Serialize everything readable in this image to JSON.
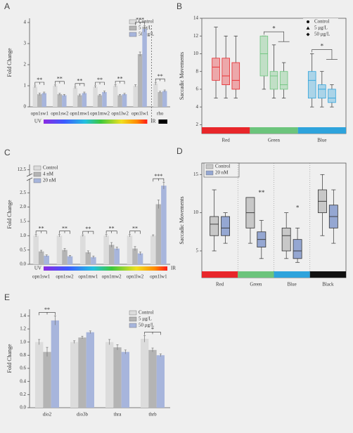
{
  "chart_data": [
    {
      "type": "bar",
      "panel": "A",
      "ylabel": "Fold Change",
      "categories": [
        "opn1sw1",
        "opn1sw2",
        "opn1mw1",
        "opn1mw2",
        "opn1lw2",
        "opn1lw1",
        "rho"
      ],
      "series": [
        {
          "name": "Control",
          "color": "#dcdcdc",
          "values": [
            0.95,
            1.0,
            0.9,
            0.95,
            1.0,
            1.0,
            1.1
          ],
          "errors": [
            0.05,
            0.04,
            0.04,
            0.05,
            0.05,
            0.05,
            0.06
          ]
        },
        {
          "name": "5 μg/L",
          "color": "#b4b4b4",
          "values": [
            0.6,
            0.6,
            0.55,
            0.55,
            0.55,
            2.5,
            0.7
          ],
          "errors": [
            0.05,
            0.04,
            0.05,
            0.04,
            0.04,
            0.1,
            0.04
          ]
        },
        {
          "name": "50 μg/L",
          "color": "#a7b5dc",
          "values": [
            0.65,
            0.55,
            0.65,
            0.7,
            0.6,
            3.7,
            0.75
          ],
          "errors": [
            0.05,
            0.04,
            0.05,
            0.05,
            0.04,
            0.15,
            0.05
          ]
        }
      ],
      "significance": [
        "**",
        "**",
        "**",
        "**",
        "**",
        "***",
        "**"
      ],
      "annotations": [
        "UV",
        "IR"
      ],
      "ylim": [
        0,
        4.2
      ],
      "yticks": [
        0,
        1,
        2,
        3,
        4
      ],
      "legend": "upper right"
    },
    {
      "type": "box",
      "panel": "B",
      "ylabel": "Saccadic Movements",
      "categories": [
        "Red",
        "Green",
        "Blue"
      ],
      "category_colors": [
        "#e8262a",
        "#6cc47c",
        "#2ea3dc"
      ],
      "series": [
        {
          "name": "Control",
          "marker": "circle",
          "boxes": [
            {
              "min": 5,
              "q1": 7,
              "median": 8.5,
              "q3": 9.5,
              "max": 13
            },
            {
              "min": 6,
              "q1": 7.5,
              "median": 10,
              "q3": 12,
              "max": 12
            },
            {
              "min": 4,
              "q1": 5,
              "median": 7,
              "q3": 8,
              "max": 10
            }
          ]
        },
        {
          "name": "5 μg/L",
          "marker": "triangle",
          "boxes": [
            {
              "min": 5,
              "q1": 6.5,
              "median": 7.5,
              "q3": 9.5,
              "max": 12
            },
            {
              "min": 5,
              "q1": 6,
              "median": 7.5,
              "q3": 8,
              "max": 11
            },
            {
              "min": 4,
              "q1": 5,
              "median": 6,
              "q3": 6.5,
              "max": 8
            }
          ]
        },
        {
          "name": "50 μg/L",
          "marker": "diamond",
          "boxes": [
            {
              "min": 5,
              "q1": 6,
              "median": 7,
              "q3": 9,
              "max": 12
            },
            {
              "min": 5,
              "q1": 6,
              "median": 6.5,
              "q3": 8,
              "max": 9
            },
            {
              "min": 4,
              "q1": 4.5,
              "median": 5,
              "q3": 6,
              "max": 6.5
            }
          ]
        }
      ],
      "significance": [
        null,
        "*",
        "*"
      ],
      "ylim": [
        1,
        14
      ],
      "yticks": [
        2,
        4,
        6,
        8,
        10,
        12,
        14
      ],
      "legend": "upper right"
    },
    {
      "type": "bar",
      "panel": "C",
      "ylabel": "Fold Change",
      "categories": [
        "opn1sw1",
        "opn1sw2",
        "opn1mw1",
        "opn1mw2",
        "opn1lw2",
        "opn1lw1"
      ],
      "series": [
        {
          "name": "Control",
          "color": "#dcdcdc",
          "values": [
            1.0,
            1.0,
            1.0,
            1.0,
            1.0,
            1.0
          ],
          "errors": [
            0.04,
            0.04,
            0.03,
            0.04,
            0.04,
            0.03
          ]
        },
        {
          "name": "4 nM",
          "color": "#b4b4b4",
          "values": [
            0.45,
            0.5,
            0.42,
            0.68,
            0.55,
            2.1
          ],
          "errors": [
            0.04,
            0.05,
            0.05,
            0.08,
            0.07,
            0.15
          ]
        },
        {
          "name": "20 nM",
          "color": "#a7b5dc",
          "values": [
            0.3,
            0.28,
            0.25,
            0.55,
            0.38,
            2.75
          ],
          "errors": [
            0.03,
            0.03,
            0.04,
            0.05,
            0.05,
            0.12
          ]
        }
      ],
      "significance": [
        "**",
        "**",
        "**",
        "**",
        "**",
        "***"
      ],
      "annotations": [
        "UV",
        "IR"
      ],
      "ylim": [
        0,
        13
      ],
      "ybreak": [
        2.9,
        12.2
      ],
      "yticks": [
        {
          "value": 0,
          "label": "0.0"
        },
        0.5,
        {
          "value": 1,
          "label": "1.0"
        },
        1.5,
        {
          "value": 2,
          "label": "2.0"
        },
        2.5,
        12.5
      ],
      "legend": "upper left"
    },
    {
      "type": "box",
      "panel": "D",
      "ylabel": "Saccadic Movements",
      "categories": [
        "Red",
        "Green",
        "Blue",
        "Black"
      ],
      "category_colors": [
        "#e8262a",
        "#6cc47c",
        "#2ea3dc",
        "#111111"
      ],
      "series": [
        {
          "name": "Control",
          "color": "#c8c8c8",
          "boxes": [
            {
              "min": 5,
              "q1": 7,
              "median": 8.5,
              "q3": 9.5,
              "max": 13
            },
            {
              "min": 6,
              "q1": 8,
              "median": 10,
              "q3": 12,
              "max": 12
            },
            {
              "min": 4,
              "q1": 5,
              "median": 7,
              "q3": 8,
              "max": 10
            },
            {
              "min": 7,
              "q1": 10,
              "median": 11.5,
              "q3": 13,
              "max": 15
            }
          ]
        },
        {
          "name": "20 nM",
          "color": "#95a7d2",
          "boxes": [
            {
              "min": 6,
              "q1": 7,
              "median": 8,
              "q3": 9.5,
              "max": 10
            },
            {
              "min": 4,
              "q1": 5.5,
              "median": 6.5,
              "q3": 7.5,
              "max": 9
            },
            {
              "min": 3.5,
              "q1": 4,
              "median": 5,
              "q3": 6.5,
              "max": 8
            },
            {
              "min": 6,
              "q1": 8,
              "median": 9.5,
              "q3": 11,
              "max": 13
            }
          ]
        }
      ],
      "significance": [
        null,
        "**",
        "*",
        null
      ],
      "ylim": [
        1.5,
        16.5
      ],
      "yticks": [
        5,
        10,
        15
      ],
      "legend": "upper left"
    },
    {
      "type": "bar",
      "panel": "E",
      "ylabel": "Fold Change",
      "categories": [
        "dio2",
        "dio3b",
        "thra",
        "thrb"
      ],
      "series": [
        {
          "name": "Control",
          "color": "#dcdcdc",
          "values": [
            1.0,
            1.0,
            1.0,
            1.05
          ],
          "errors": [
            0.04,
            0.02,
            0.04,
            0.05
          ]
        },
        {
          "name": "5 μg/L",
          "color": "#b4b4b4",
          "values": [
            0.85,
            1.07,
            0.92,
            0.88
          ],
          "errors": [
            0.07,
            0.02,
            0.04,
            0.03
          ]
        },
        {
          "name": "50 μg/L",
          "color": "#a7b5dc",
          "values": [
            1.33,
            1.15,
            0.85,
            0.8
          ],
          "errors": [
            0.07,
            0.02,
            0.03,
            0.02
          ]
        }
      ],
      "significance": [
        "**",
        null,
        null,
        "*"
      ],
      "ylim": [
        0,
        1.5
      ],
      "yticks": [
        {
          "value": 0,
          "label": "0.0"
        },
        0.2,
        0.4,
        0.6,
        0.8,
        {
          "value": 1,
          "label": "1.0"
        },
        1.2,
        1.4
      ],
      "legend": "upper right"
    }
  ]
}
